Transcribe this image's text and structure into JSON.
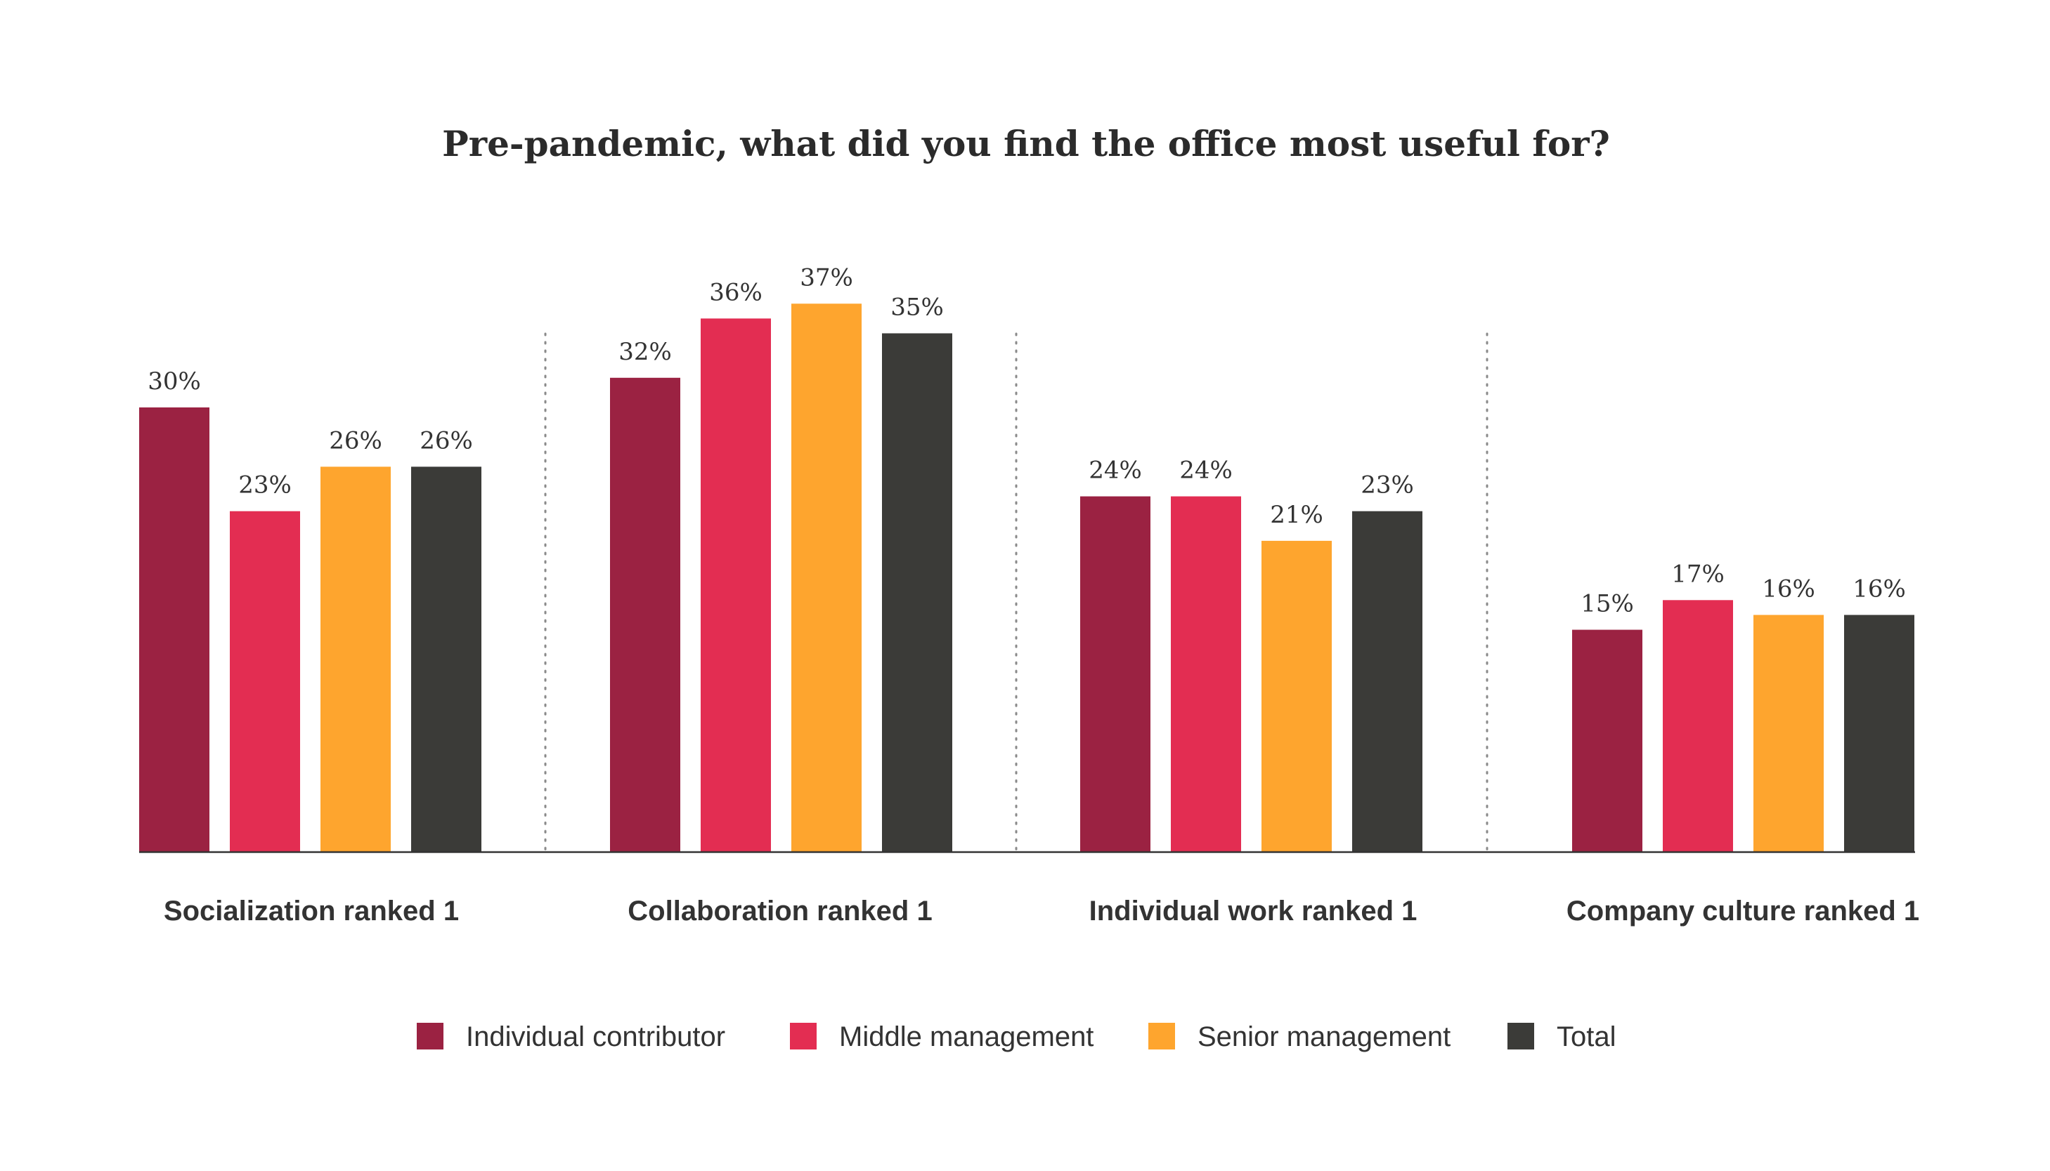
{
  "chart_data": {
    "type": "bar",
    "title": "Pre-pandemic, what did you find the office most useful for?",
    "categories": [
      "Socialization ranked 1",
      "Collaboration ranked 1",
      "Individual work ranked 1",
      "Company culture ranked 1"
    ],
    "series": [
      {
        "name": "Individual contributor",
        "color": "#9b2242",
        "values": [
          30,
          32,
          24,
          15
        ],
        "labels": [
          "30%",
          "32%",
          "24%",
          "15%"
        ]
      },
      {
        "name": "Middle management",
        "color": "#e32d52",
        "values": [
          23,
          36,
          24,
          17
        ],
        "labels": [
          "23%",
          "36%",
          "24%",
          "17%"
        ]
      },
      {
        "name": "Senior management",
        "color": "#fea52e",
        "values": [
          26,
          37,
          21,
          16
        ],
        "labels": [
          "26%",
          "37%",
          "21%",
          "16%"
        ]
      },
      {
        "name": "Total",
        "color": "#3b3b38",
        "values": [
          26,
          35,
          23,
          16
        ],
        "labels": [
          "26%",
          "35%",
          "23%",
          "16%"
        ]
      }
    ],
    "ylim": [
      0,
      37
    ],
    "grid": false,
    "legend_position": "bottom",
    "group_separators": "dotted"
  }
}
